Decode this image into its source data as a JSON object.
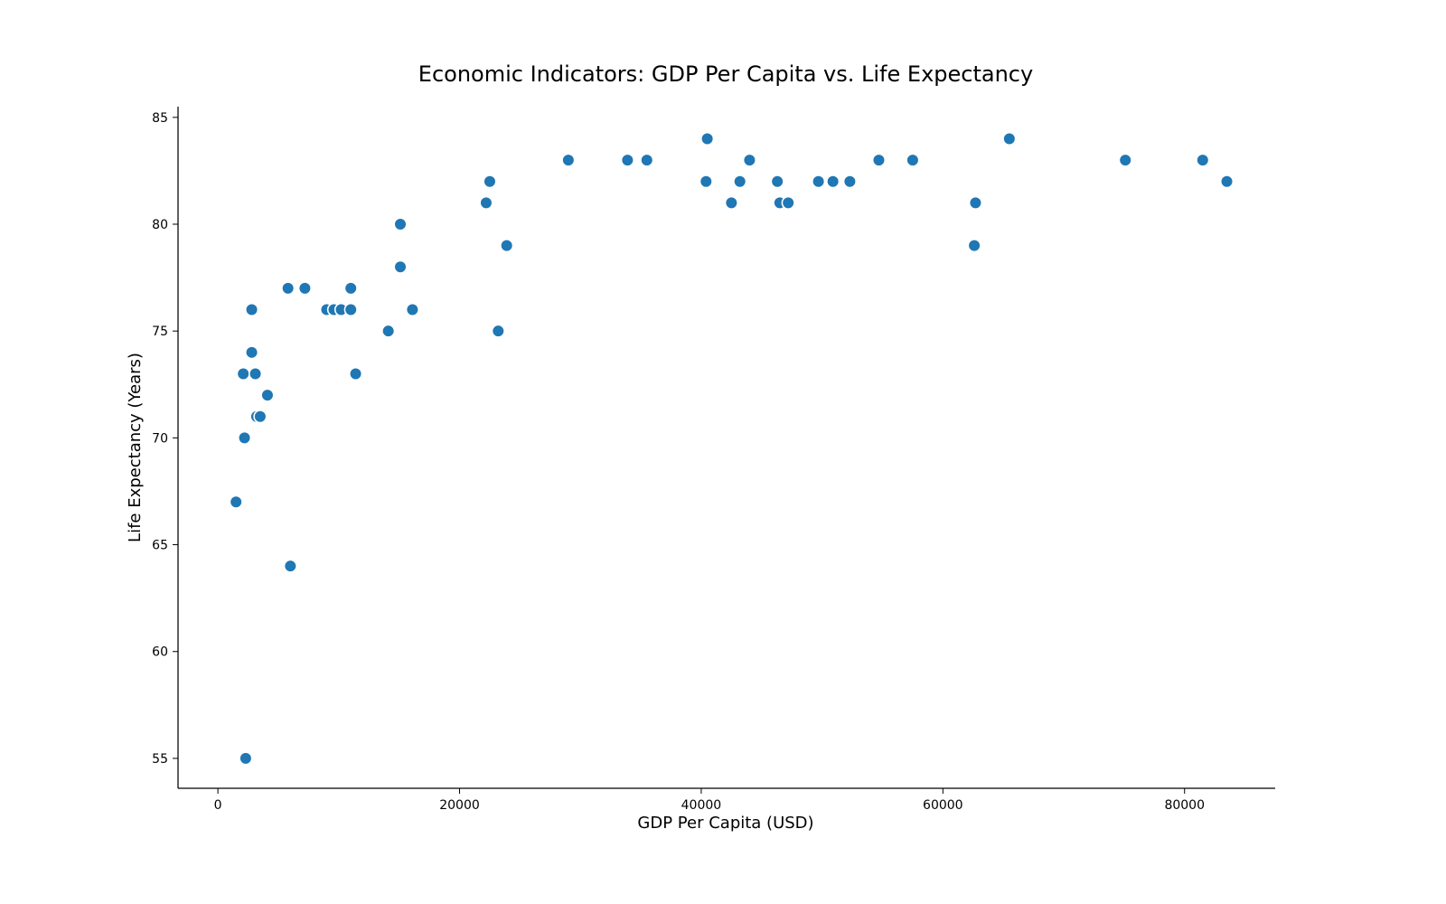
{
  "chart_data": {
    "type": "scatter",
    "title": "Economic Indicators: GDP Per Capita vs. Life Expectancy",
    "xlabel": "GDP Per Capita (USD)",
    "ylabel": "Life Expectancy (Years)",
    "xlim": [
      -3300,
      87500
    ],
    "ylim": [
      53.6,
      85.5
    ],
    "xticks": [
      0,
      20000,
      40000,
      60000,
      80000
    ],
    "xtick_labels": [
      "0",
      "20000",
      "40000",
      "60000",
      "80000"
    ],
    "yticks": [
      55,
      60,
      65,
      70,
      75,
      80,
      85
    ],
    "ytick_labels": [
      "55",
      "60",
      "65",
      "70",
      "75",
      "80",
      "85"
    ],
    "grid": false,
    "marker_color": "#1f77b4",
    "x": [
      1500,
      2100,
      2200,
      2300,
      2800,
      2800,
      3100,
      3200,
      3500,
      4100,
      5800,
      6000,
      7200,
      9000,
      9600,
      10200,
      11000,
      11000,
      11400,
      14100,
      15100,
      15100,
      16100,
      22200,
      22500,
      23200,
      23900,
      29000,
      33900,
      35500,
      40400,
      40500,
      42500,
      43200,
      44000,
      46300,
      46500,
      47200,
      49700,
      50900,
      52300,
      54700,
      57500,
      62600,
      62700,
      65500,
      75100,
      81500,
      83400,
      83500
    ],
    "y": [
      67,
      73,
      70,
      55,
      76,
      74,
      73,
      71,
      71,
      72,
      77,
      64,
      77,
      76,
      76,
      76,
      77,
      76,
      73,
      75,
      80,
      78,
      76,
      81,
      82,
      75,
      79,
      83,
      83,
      83,
      82,
      84,
      81,
      82,
      83,
      82,
      81,
      81,
      82,
      82,
      82,
      83,
      83,
      79,
      81,
      84,
      83,
      83,
      82,
      82
    ]
  }
}
